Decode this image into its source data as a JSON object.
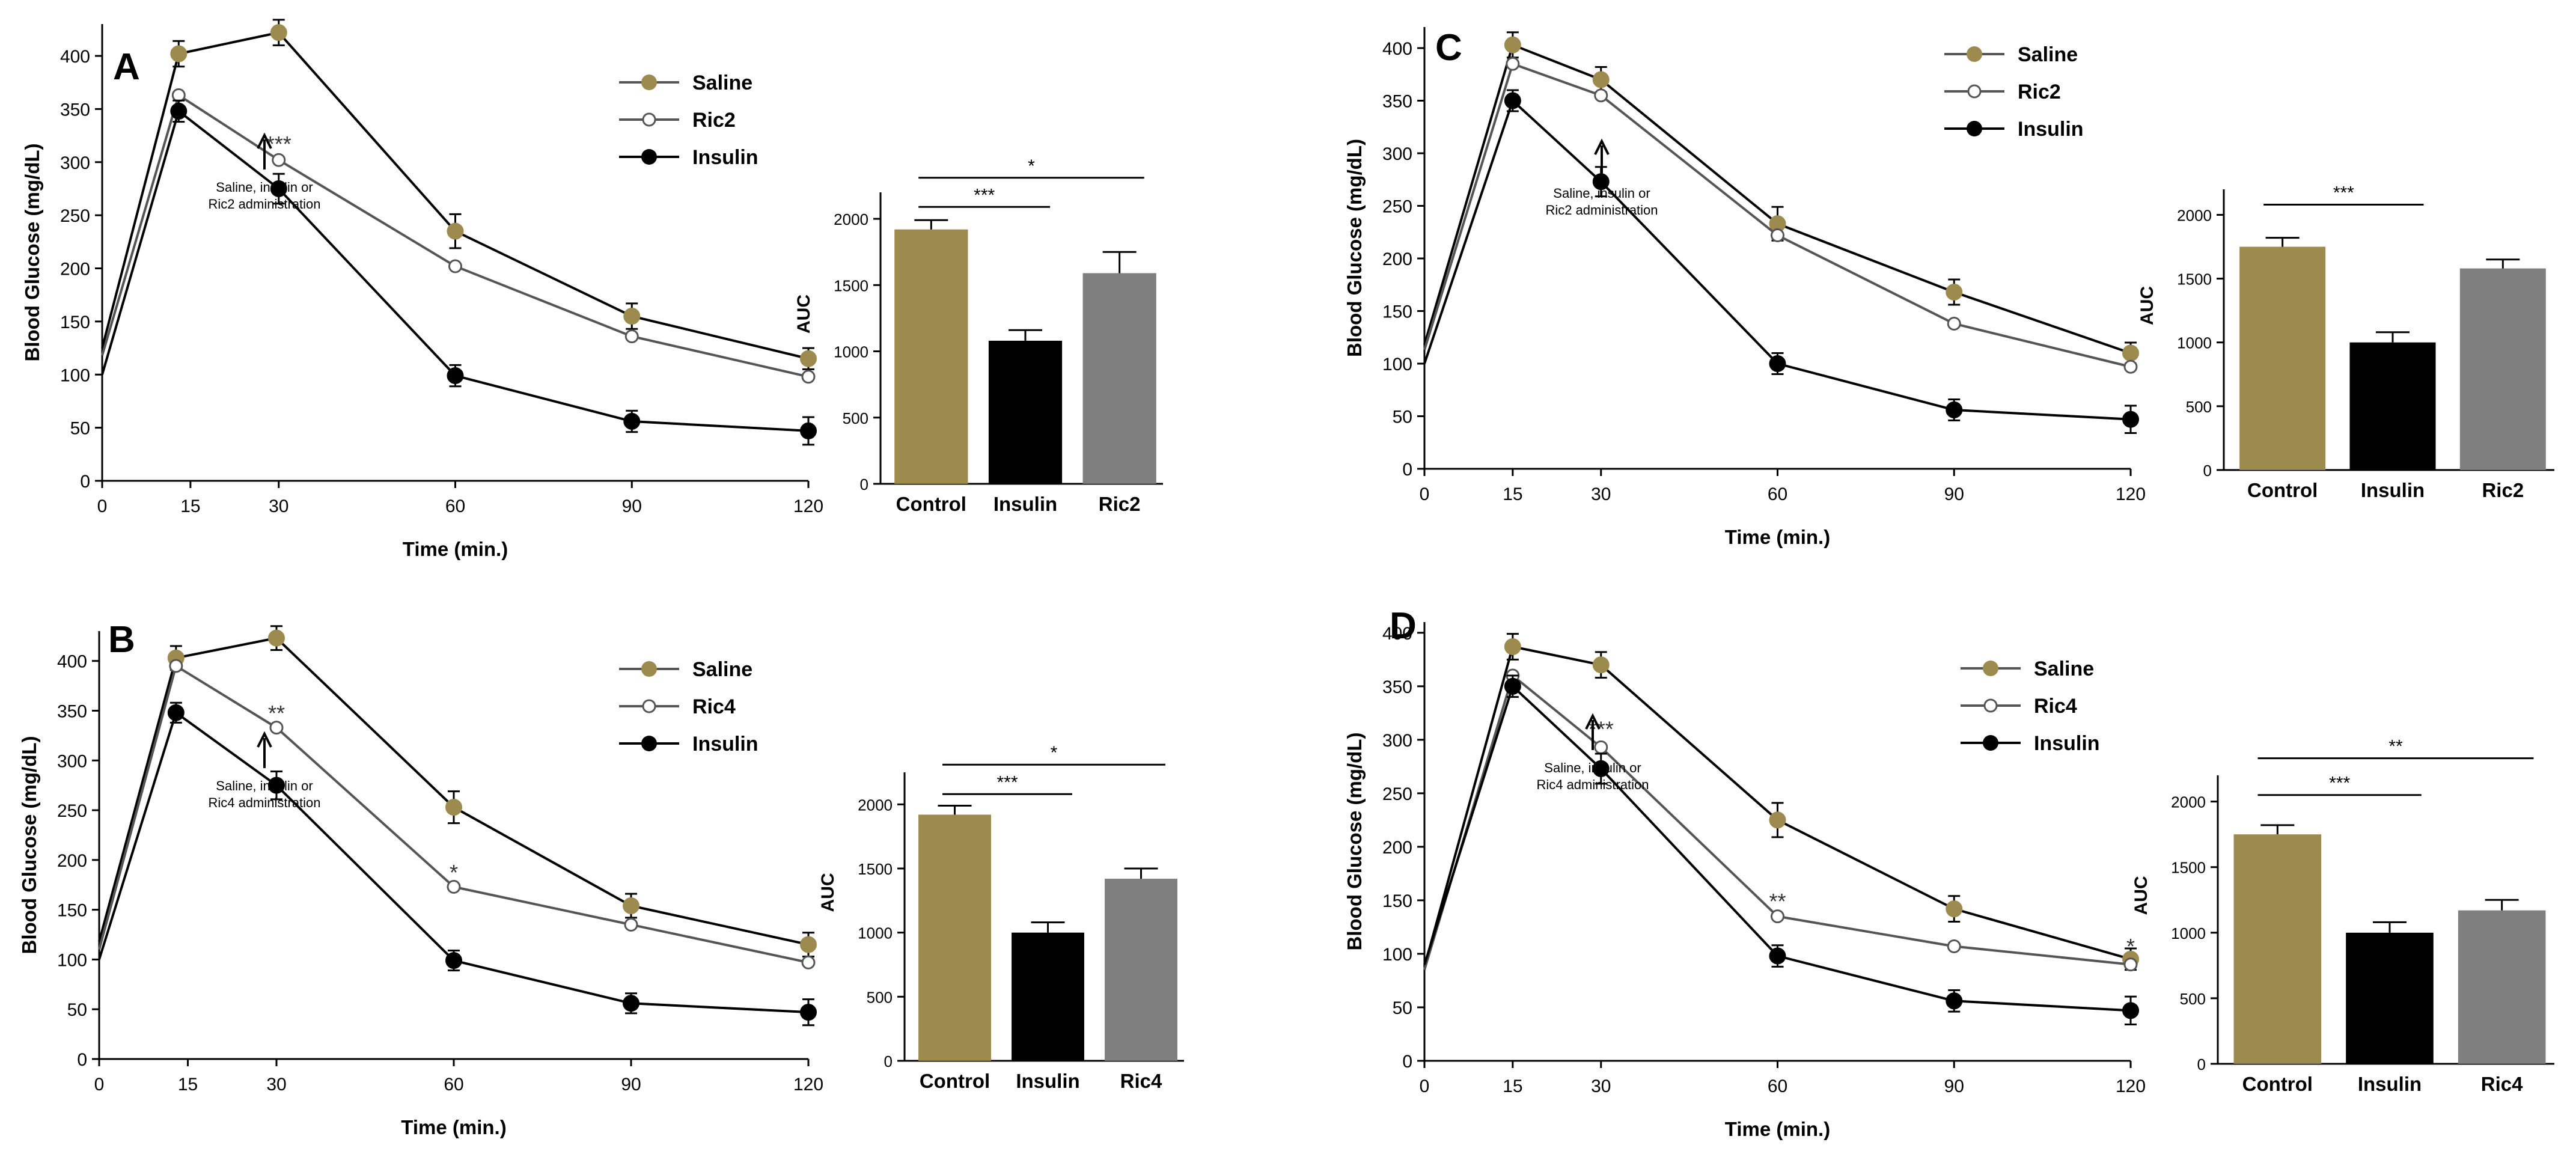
{
  "colors": {
    "saline": "#9C8A4E",
    "insulin": "#000000",
    "ric": "#7F7F7F",
    "axis": "#000000"
  },
  "chart_data": [
    {
      "panel": "A",
      "type": "line",
      "x_times": [
        0,
        13,
        30,
        60,
        90,
        120
      ],
      "x_ticks": [
        0,
        15,
        30,
        60,
        90,
        120
      ],
      "y_ticks": [
        0,
        50,
        100,
        150,
        200,
        250,
        300,
        350,
        400
      ],
      "ylim": [
        0,
        430
      ],
      "xlabel": "Time (min.)",
      "ylabel": "Blood Glucose (mg/dL)",
      "series": [
        {
          "name": "Saline",
          "role": "saline",
          "values": [
            125,
            402,
            422,
            235,
            155,
            115
          ],
          "err": [
            0,
            12,
            12,
            16,
            12,
            10
          ]
        },
        {
          "name": "Ric2",
          "role": "ric",
          "values": [
            118,
            363,
            302,
            202,
            136,
            98
          ],
          "err": [
            0,
            0,
            0,
            0,
            0,
            0
          ]
        },
        {
          "name": "Insulin",
          "role": "insulin",
          "values": [
            100,
            348,
            275,
            99,
            56,
            47
          ],
          "err": [
            0,
            10,
            14,
            10,
            10,
            13
          ]
        }
      ],
      "sig": [
        {
          "x": 30,
          "y": 310,
          "text": "***"
        }
      ],
      "annotation": {
        "line1": "Saline, insulin  or",
        "line2": "Ric2 administration"
      },
      "bar": {
        "type": "bar",
        "categories": [
          "Control",
          "Insulin",
          "Ric2"
        ],
        "values": [
          1920,
          1080,
          1590
        ],
        "err": [
          70,
          80,
          160
        ],
        "y_ticks": [
          0,
          500,
          1000,
          1500,
          2000
        ],
        "ylim": [
          0,
          2200
        ],
        "ylabel": "AUC",
        "sig": [
          {
            "from": 0,
            "to": 1,
            "text": "***",
            "level": 2090
          },
          {
            "from": 0,
            "to": 2,
            "text": "*",
            "level": 2310
          }
        ]
      }
    },
    {
      "panel": "B",
      "type": "line",
      "x_times": [
        0,
        13,
        30,
        60,
        90,
        120
      ],
      "x_ticks": [
        0,
        15,
        30,
        60,
        90,
        120
      ],
      "y_ticks": [
        0,
        50,
        100,
        150,
        200,
        250,
        300,
        350,
        400
      ],
      "ylim": [
        0,
        430
      ],
      "xlabel": "Time (min.)",
      "ylabel": "Blood Glucose (mg/dL)",
      "series": [
        {
          "name": "Saline",
          "role": "saline",
          "values": [
            118,
            403,
            423,
            253,
            154,
            115
          ],
          "err": [
            0,
            12,
            12,
            16,
            12,
            12
          ]
        },
        {
          "name": "Ric4",
          "role": "ric",
          "values": [
            110,
            395,
            333,
            173,
            135,
            97
          ],
          "err": [
            0,
            0,
            0,
            0,
            0,
            0
          ]
        },
        {
          "name": "Insulin",
          "role": "insulin",
          "values": [
            100,
            348,
            275,
            99,
            56,
            47
          ],
          "err": [
            0,
            10,
            14,
            10,
            10,
            13
          ]
        }
      ],
      "sig": [
        {
          "x": 30,
          "y": 340,
          "text": "**"
        },
        {
          "x": 60,
          "y": 180,
          "text": "*"
        }
      ],
      "annotation": {
        "line1": "Saline, insulin  or",
        "line2": "Ric4 administration"
      },
      "bar": {
        "type": "bar",
        "categories": [
          "Control",
          "Insulin",
          "Ric4"
        ],
        "values": [
          1920,
          1000,
          1420
        ],
        "err": [
          70,
          80,
          80
        ],
        "y_ticks": [
          0,
          500,
          1000,
          1500,
          2000
        ],
        "ylim": [
          0,
          2250
        ],
        "ylabel": "AUC",
        "sig": [
          {
            "from": 0,
            "to": 1,
            "text": "***",
            "level": 2080
          },
          {
            "from": 0,
            "to": 2,
            "text": "*",
            "level": 2310
          }
        ]
      }
    },
    {
      "panel": "C",
      "type": "line",
      "x_times": [
        0,
        15,
        30,
        60,
        90,
        120
      ],
      "x_ticks": [
        0,
        15,
        30,
        60,
        90,
        120
      ],
      "y_ticks": [
        0,
        50,
        100,
        150,
        200,
        250,
        300,
        350,
        400
      ],
      "ylim": [
        0,
        420
      ],
      "xlabel": "Time (min.)",
      "ylabel": "Blood Glucose (mg/dL)",
      "series": [
        {
          "name": "Saline",
          "role": "saline",
          "values": [
            118,
            403,
            370,
            233,
            168,
            110
          ],
          "err": [
            0,
            12,
            12,
            16,
            12,
            10
          ]
        },
        {
          "name": "Ric2",
          "role": "ric",
          "values": [
            113,
            385,
            355,
            222,
            138,
            97
          ],
          "err": [
            0,
            0,
            0,
            0,
            0,
            0
          ]
        },
        {
          "name": "Insulin",
          "role": "insulin",
          "values": [
            100,
            350,
            273,
            100,
            56,
            47
          ],
          "err": [
            0,
            10,
            14,
            10,
            10,
            13
          ]
        }
      ],
      "sig": [],
      "annotation": {
        "line1": "Saline, insulin  or",
        "line2": "Ric2 administration"
      },
      "bar": {
        "type": "bar",
        "categories": [
          "Control",
          "Insulin",
          "Ric2"
        ],
        "values": [
          1750,
          1000,
          1580
        ],
        "err": [
          70,
          80,
          70
        ],
        "y_ticks": [
          0,
          500,
          1000,
          1500,
          2000
        ],
        "ylim": [
          0,
          2200
        ],
        "ylabel": "AUC",
        "sig": [
          {
            "from": 0,
            "to": 1,
            "text": "***",
            "level": 2080
          }
        ]
      }
    },
    {
      "panel": "D",
      "type": "line",
      "x_times": [
        0,
        15,
        30,
        60,
        90,
        120
      ],
      "x_ticks": [
        0,
        15,
        30,
        60,
        90,
        120
      ],
      "y_ticks": [
        0,
        50,
        100,
        150,
        200,
        250,
        300,
        350,
        400
      ],
      "ylim": [
        0,
        410
      ],
      "xlabel": "Time (min.)",
      "ylabel": "Blood Glucose (mg/dL)",
      "series": [
        {
          "name": "Saline",
          "role": "saline",
          "values": [
            88,
            387,
            370,
            225,
            142,
            95
          ],
          "err": [
            0,
            12,
            12,
            16,
            12,
            10
          ]
        },
        {
          "name": "Ric4",
          "role": "ric",
          "values": [
            85,
            360,
            293,
            135,
            107,
            90
          ],
          "err": [
            0,
            0,
            0,
            0,
            0,
            0
          ]
        },
        {
          "name": "Insulin",
          "role": "insulin",
          "values": [
            90,
            350,
            273,
            98,
            56,
            47
          ],
          "err": [
            0,
            10,
            14,
            10,
            10,
            13
          ]
        }
      ],
      "sig": [
        {
          "x": 30,
          "y": 303,
          "text": "***"
        },
        {
          "x": 60,
          "y": 142,
          "text": "**"
        },
        {
          "x": 120,
          "y": 100,
          "text": "*"
        }
      ],
      "annotation": {
        "line1": "Saline, insulin  or",
        "line2": "Ric4 administration"
      },
      "bar": {
        "type": "bar",
        "categories": [
          "Control",
          "Insulin",
          "Ric4"
        ],
        "values": [
          1750,
          1000,
          1170
        ],
        "err": [
          70,
          80,
          80
        ],
        "y_ticks": [
          0,
          500,
          1000,
          1500,
          2000
        ],
        "ylim": [
          0,
          2200
        ],
        "ylabel": "AUC",
        "sig": [
          {
            "from": 0,
            "to": 1,
            "text": "***",
            "level": 2050
          },
          {
            "from": 0,
            "to": 2,
            "text": "**",
            "level": 2330
          }
        ]
      }
    }
  ]
}
